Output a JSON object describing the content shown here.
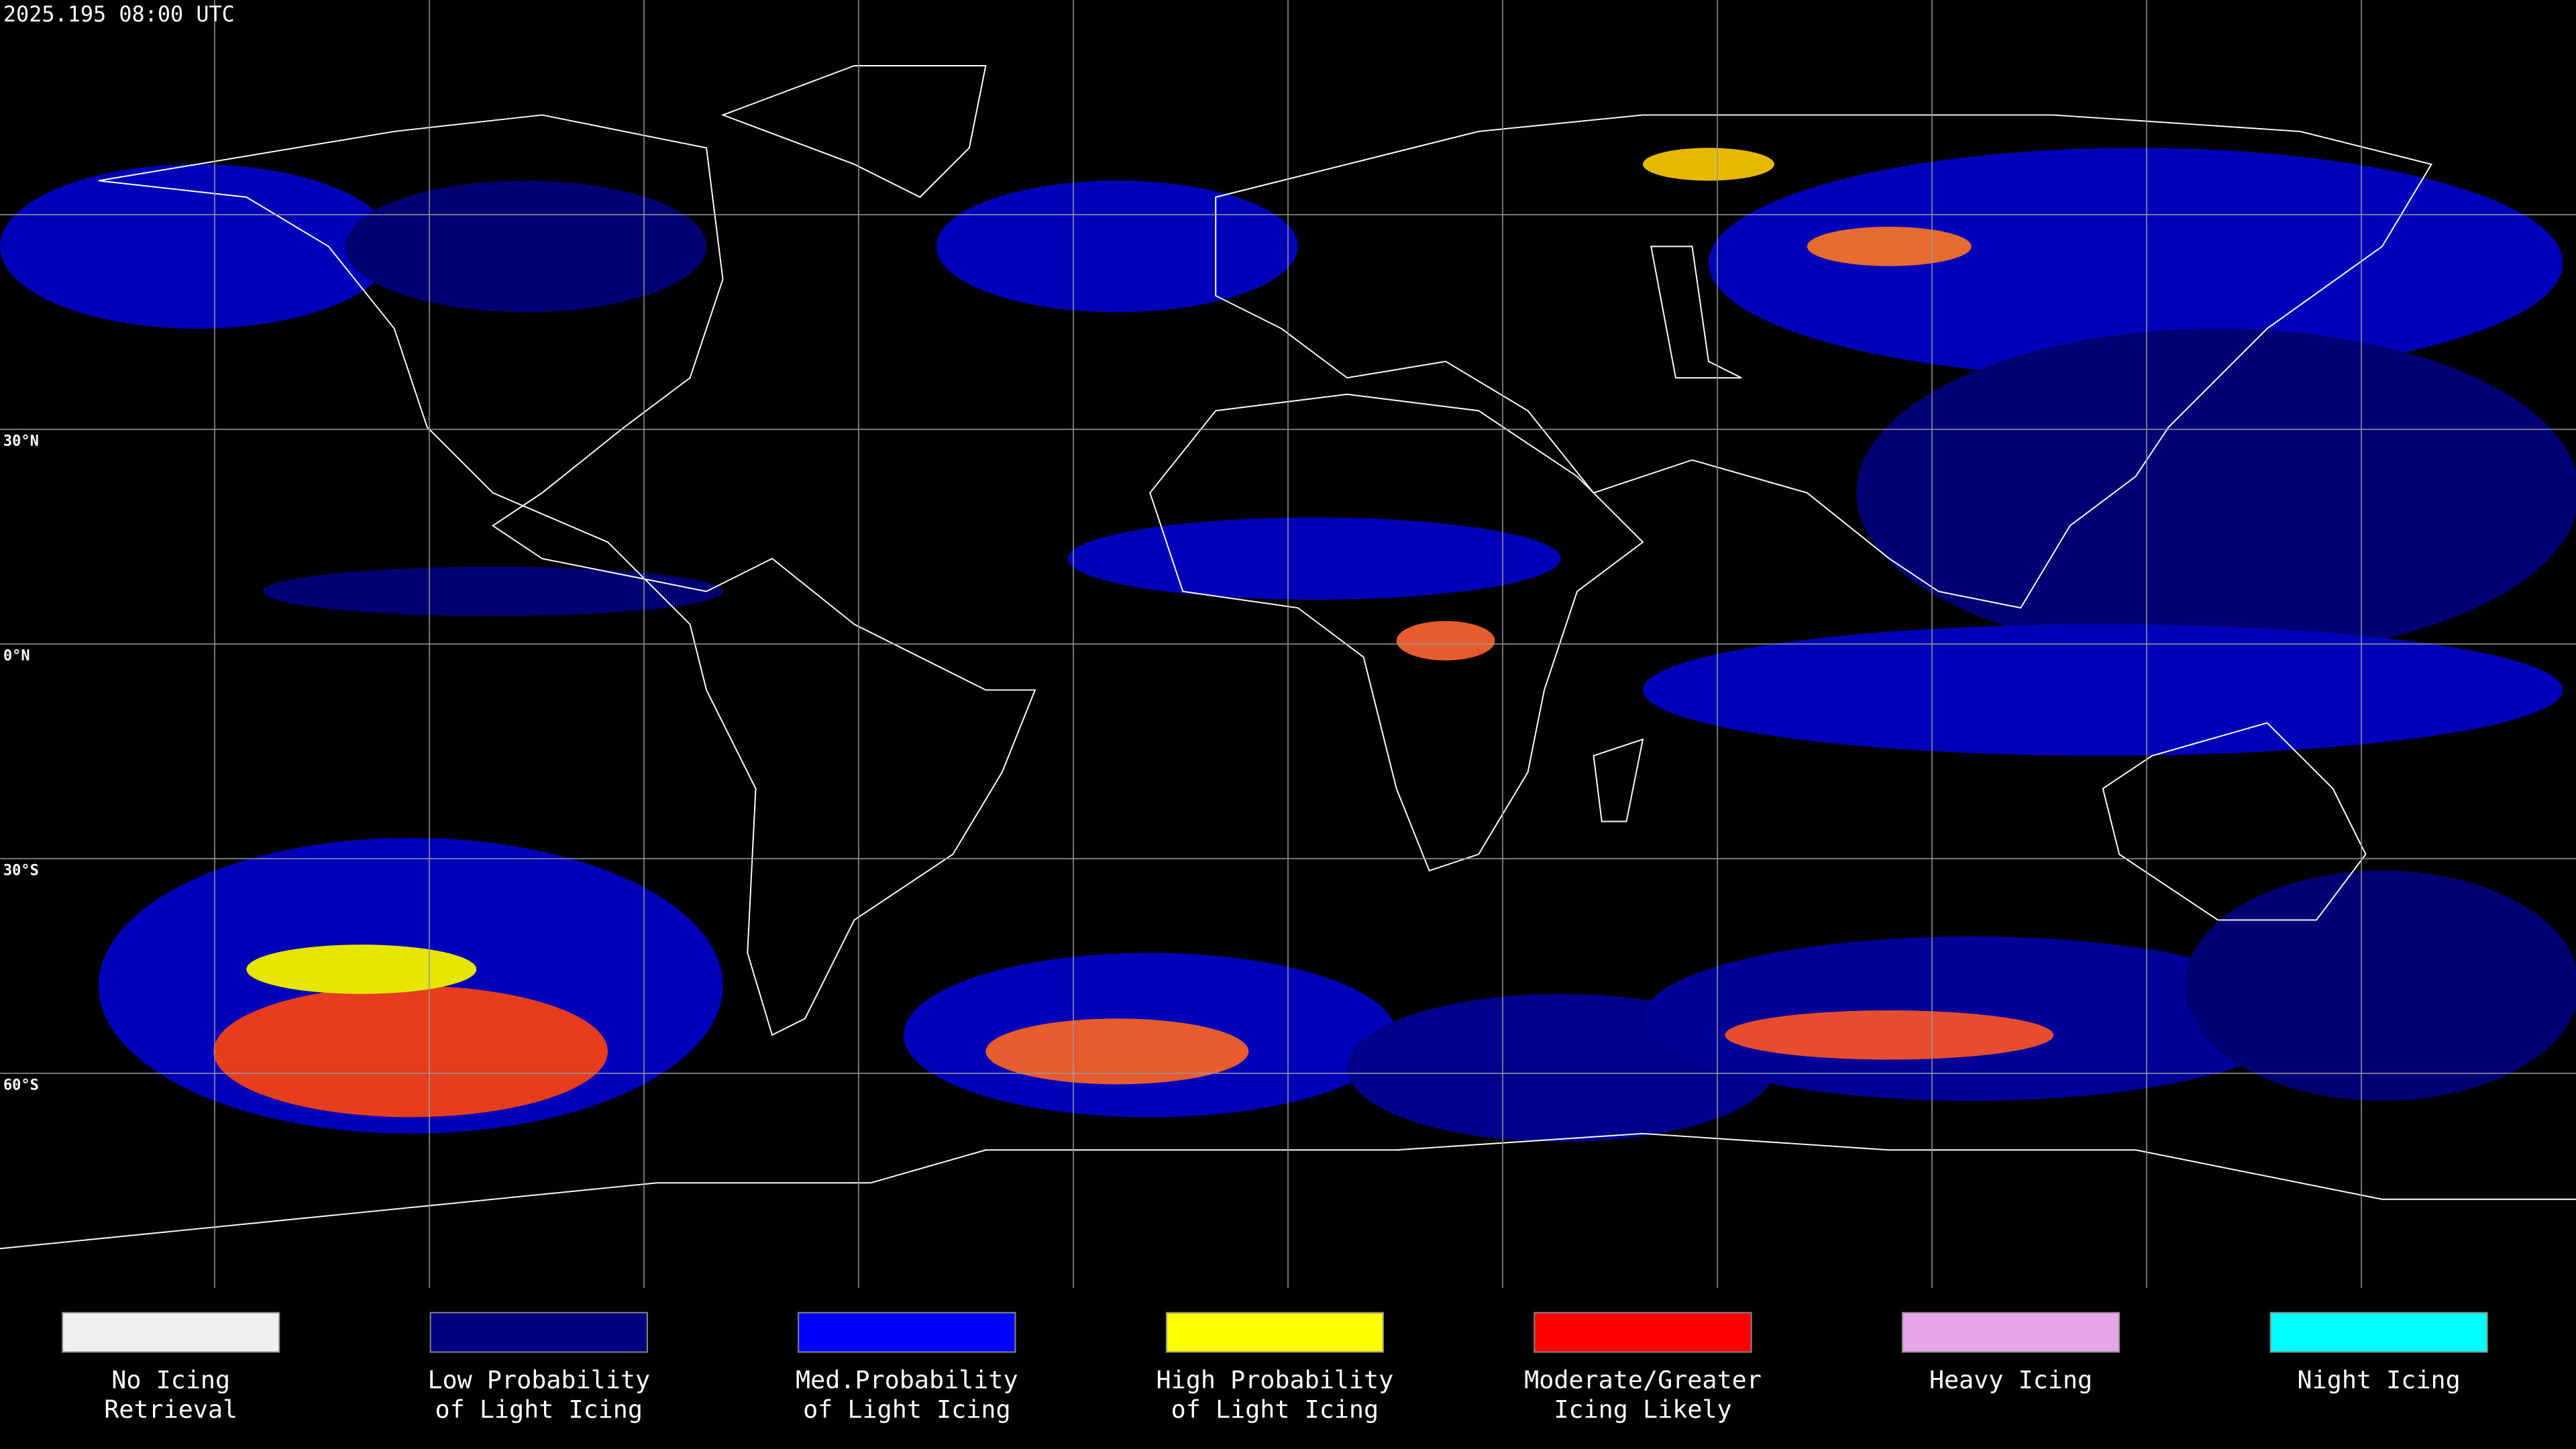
{
  "header": {
    "timestamp": "2025.195 08:00 UTC"
  },
  "lat_labels": [
    {
      "label": "30°N",
      "y": 30
    },
    {
      "label": "0°N",
      "y": 0
    },
    {
      "label": "30°S",
      "y": -30
    },
    {
      "label": "60°S",
      "y": -60
    }
  ],
  "legend": [
    {
      "lines": [
        "No Icing",
        "Retrieval"
      ],
      "color": "#f0f0f0"
    },
    {
      "lines": [
        "Low Probability",
        "of Light Icing"
      ],
      "color": "#000080"
    },
    {
      "lines": [
        "Med.Probability",
        "of Light Icing"
      ],
      "color": "#0000ff"
    },
    {
      "lines": [
        "High Probability",
        "of Light Icing"
      ],
      "color": "#ffff00"
    },
    {
      "lines": [
        "Moderate/Greater",
        "Icing Likely"
      ],
      "color": "#ff0000"
    },
    {
      "lines": [
        "Heavy Icing"
      ],
      "color": "#e8a6e8"
    },
    {
      "lines": [
        "Night Icing"
      ],
      "color": "#00ffff"
    }
  ]
}
